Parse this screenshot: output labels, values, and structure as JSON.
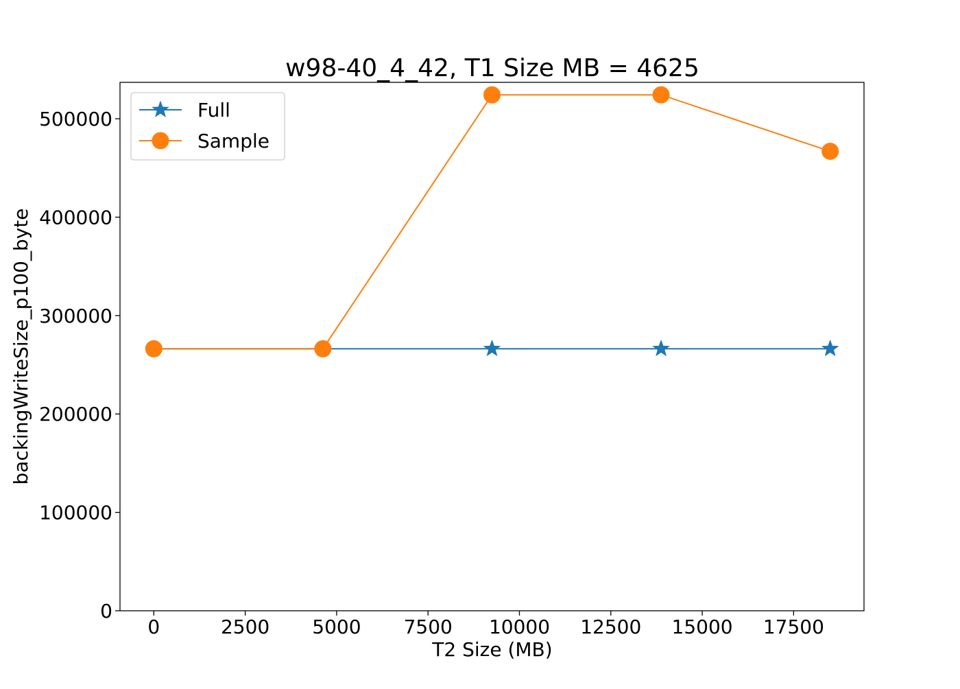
{
  "chart_data": {
    "type": "line",
    "title": "w98-40_4_42, T1 Size MB = 4625",
    "xlabel": "T2 Size (MB)",
    "ylabel": "backingWriteSize_p100_byte",
    "x": [
      0,
      4625,
      9250,
      13875,
      18500
    ],
    "series": [
      {
        "name": "Full",
        "marker": "star",
        "color": "#1f77b4",
        "values": [
          266240,
          266240,
          266240,
          266240,
          266240
        ]
      },
      {
        "name": "Sample",
        "marker": "circle",
        "color": "#ff7f0e",
        "values": [
          266240,
          266240,
          524288,
          524288,
          466944
        ]
      }
    ],
    "xlim": [
      -925,
      19425
    ],
    "ylim": [
      0,
      537000
    ],
    "xticks": [
      0,
      2500,
      5000,
      7500,
      10000,
      12500,
      15000,
      17500
    ],
    "xtick_labels": [
      "0",
      "2500",
      "5000",
      "7500",
      "10000",
      "12500",
      "15000",
      "17500"
    ],
    "yticks": [
      0,
      100000,
      200000,
      300000,
      400000,
      500000
    ],
    "ytick_labels": [
      "0",
      "100000",
      "200000",
      "300000",
      "400000",
      "500000"
    ],
    "grid": false,
    "legend_position": "upper left"
  }
}
